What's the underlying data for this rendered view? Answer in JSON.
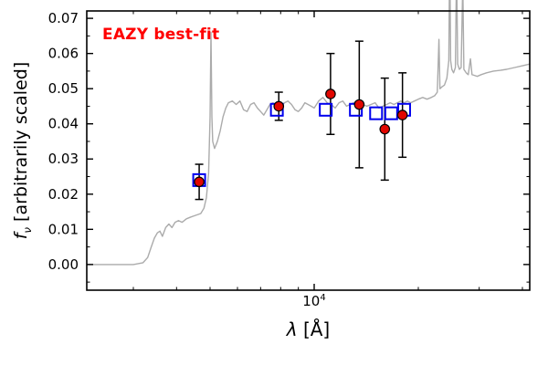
{
  "annotation": {
    "text": "EAZY best-fit",
    "color": "#ff0000"
  },
  "labels": {
    "ylabel_symbol": "f",
    "ylabel_sub": "ν",
    "ylabel_rest": " [arbitrarily scaled]",
    "xlabel_symbol": "λ",
    "xlabel_unit": " [Å]",
    "xtick_base": "10",
    "xtick_exp": "4"
  },
  "chart_data": {
    "type": "line",
    "title": "",
    "annotation": "EAZY best-fit",
    "xlabel": "λ [Å]",
    "ylabel": "f_ν [arbitrarily scaled]",
    "xscale": "log",
    "xlim": [
      2200,
      42000
    ],
    "ylim": [
      -0.0073,
      0.0721
    ],
    "yticks_major": [
      0.0,
      0.01,
      0.02,
      0.03,
      0.04,
      0.05,
      0.06,
      0.07
    ],
    "ytick_labels": [
      "0.00",
      "0.01",
      "0.02",
      "0.03",
      "0.04",
      "0.05",
      "0.06",
      "0.07"
    ],
    "yticks_minor": [
      -0.005,
      0.005,
      0.015,
      0.025,
      0.035,
      0.045,
      0.055,
      0.065
    ],
    "xticks_major": [
      10000
    ],
    "xticks_minor": [
      3000,
      4000,
      5000,
      6000,
      7000,
      8000,
      9000,
      20000,
      30000,
      40000
    ],
    "grid": false,
    "legend": "none",
    "colors": {
      "spectrum": "#ababab",
      "model": "#0000ee",
      "observed": "#e10600",
      "errorbar": "#000000"
    },
    "series": [
      {
        "name": "EAZY best-fit model spectrum",
        "role": "spectrum",
        "type": "line",
        "points": [
          [
            2200,
            0.0
          ],
          [
            3000,
            0.0
          ],
          [
            3200,
            0.0005
          ],
          [
            3300,
            0.002
          ],
          [
            3380,
            0.005
          ],
          [
            3450,
            0.0075
          ],
          [
            3520,
            0.009
          ],
          [
            3580,
            0.0095
          ],
          [
            3640,
            0.008
          ],
          [
            3720,
            0.0105
          ],
          [
            3800,
            0.0115
          ],
          [
            3880,
            0.0105
          ],
          [
            3960,
            0.012
          ],
          [
            4050,
            0.0125
          ],
          [
            4150,
            0.012
          ],
          [
            4270,
            0.013
          ],
          [
            4400,
            0.0135
          ],
          [
            4550,
            0.014
          ],
          [
            4700,
            0.0145
          ],
          [
            4800,
            0.016
          ],
          [
            4880,
            0.019
          ],
          [
            4950,
            0.026
          ],
          [
            5000,
            0.042
          ],
          [
            5030,
            0.066
          ],
          [
            5060,
            0.042
          ],
          [
            5090,
            0.035
          ],
          [
            5150,
            0.033
          ],
          [
            5250,
            0.035
          ],
          [
            5350,
            0.038
          ],
          [
            5450,
            0.042
          ],
          [
            5550,
            0.0445
          ],
          [
            5650,
            0.046
          ],
          [
            5800,
            0.0465
          ],
          [
            5950,
            0.0455
          ],
          [
            6100,
            0.0465
          ],
          [
            6250,
            0.044
          ],
          [
            6400,
            0.0435
          ],
          [
            6550,
            0.0455
          ],
          [
            6700,
            0.046
          ],
          [
            6850,
            0.0445
          ],
          [
            7000,
            0.0435
          ],
          [
            7150,
            0.0425
          ],
          [
            7300,
            0.044
          ],
          [
            7450,
            0.0455
          ],
          [
            7600,
            0.046
          ],
          [
            7800,
            0.045
          ],
          [
            8000,
            0.0445
          ],
          [
            8200,
            0.046
          ],
          [
            8400,
            0.0465
          ],
          [
            8600,
            0.0455
          ],
          [
            8800,
            0.044
          ],
          [
            9000,
            0.0435
          ],
          [
            9200,
            0.0445
          ],
          [
            9400,
            0.046
          ],
          [
            9600,
            0.0455
          ],
          [
            9800,
            0.045
          ],
          [
            10000,
            0.0445
          ],
          [
            10300,
            0.0465
          ],
          [
            10600,
            0.0475
          ],
          [
            10900,
            0.046
          ],
          [
            11200,
            0.0455
          ],
          [
            11500,
            0.0445
          ],
          [
            11800,
            0.046
          ],
          [
            12100,
            0.0465
          ],
          [
            12400,
            0.045
          ],
          [
            12700,
            0.0455
          ],
          [
            13000,
            0.046
          ],
          [
            13400,
            0.0465
          ],
          [
            13800,
            0.0455
          ],
          [
            14200,
            0.045
          ],
          [
            14600,
            0.0455
          ],
          [
            15000,
            0.046
          ],
          [
            15400,
            0.0445
          ],
          [
            15800,
            0.045
          ],
          [
            16200,
            0.0455
          ],
          [
            16600,
            0.046
          ],
          [
            17000,
            0.0455
          ],
          [
            17400,
            0.046
          ],
          [
            17800,
            0.0465
          ],
          [
            18200,
            0.046
          ],
          [
            18600,
            0.0465
          ],
          [
            19000,
            0.046
          ],
          [
            19500,
            0.0465
          ],
          [
            20000,
            0.047
          ],
          [
            20600,
            0.0475
          ],
          [
            21200,
            0.047
          ],
          [
            21800,
            0.0475
          ],
          [
            22300,
            0.048
          ],
          [
            22700,
            0.049
          ],
          [
            22950,
            0.064
          ],
          [
            23100,
            0.05
          ],
          [
            23400,
            0.0505
          ],
          [
            23800,
            0.051
          ],
          [
            24200,
            0.053
          ],
          [
            24500,
            0.058
          ],
          [
            24650,
            0.09
          ],
          [
            24800,
            0.058
          ],
          [
            25000,
            0.0555
          ],
          [
            25300,
            0.0545
          ],
          [
            25600,
            0.056
          ],
          [
            25800,
            0.085
          ],
          [
            26000,
            0.057
          ],
          [
            26300,
            0.0555
          ],
          [
            26600,
            0.056
          ],
          [
            26900,
            0.08
          ],
          [
            27100,
            0.0555
          ],
          [
            27500,
            0.0545
          ],
          [
            27900,
            0.054
          ],
          [
            28300,
            0.0585
          ],
          [
            28600,
            0.054
          ],
          [
            29000,
            0.0538
          ],
          [
            29600,
            0.0535
          ],
          [
            30400,
            0.054
          ],
          [
            31500,
            0.0545
          ],
          [
            33000,
            0.055
          ],
          [
            34500,
            0.0552
          ],
          [
            36000,
            0.0555
          ],
          [
            38000,
            0.056
          ],
          [
            40000,
            0.0565
          ],
          [
            42000,
            0.057
          ]
        ]
      },
      {
        "name": "model photometry (template fluxes)",
        "role": "model_photometry",
        "type": "scatter",
        "marker": "open-square",
        "points": [
          [
            4650,
            0.024
          ],
          [
            7800,
            0.044
          ],
          [
            10800,
            0.044
          ],
          [
            13200,
            0.044
          ],
          [
            15100,
            0.043
          ],
          [
            16700,
            0.043
          ],
          [
            18200,
            0.044
          ]
        ]
      },
      {
        "name": "observed photometry",
        "role": "observed",
        "type": "scatter",
        "marker": "filled-circle",
        "points_format": [
          "wavelength_A",
          "flux",
          "error"
        ],
        "points": [
          [
            4650,
            0.0235,
            0.005
          ],
          [
            7900,
            0.045,
            0.004
          ],
          [
            11150,
            0.0485,
            0.0115
          ],
          [
            13500,
            0.0455,
            0.018
          ],
          [
            16000,
            0.0385,
            0.0145
          ],
          [
            18000,
            0.0425,
            0.012
          ]
        ]
      }
    ]
  }
}
